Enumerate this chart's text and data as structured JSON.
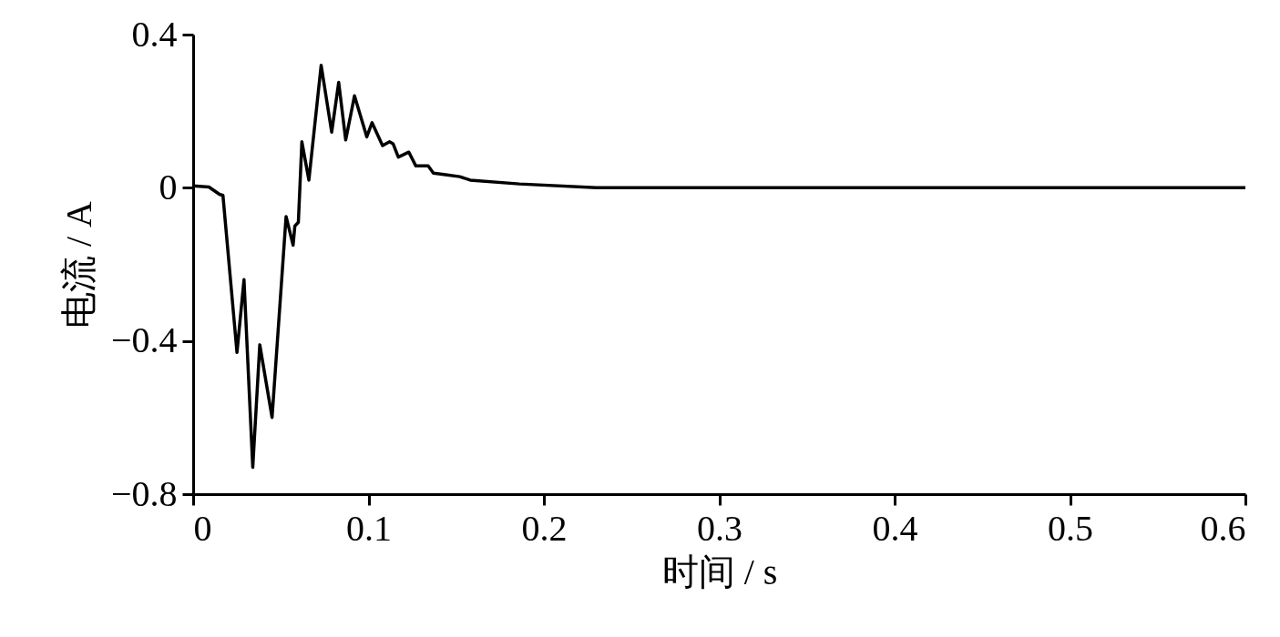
{
  "chart_data": {
    "type": "line",
    "xlabel": "时间 / s",
    "ylabel": "电流 / A",
    "xlim": [
      0,
      0.6
    ],
    "ylim": [
      -0.8,
      0.4
    ],
    "xticks": [
      0,
      0.1,
      0.2,
      0.3,
      0.4,
      0.5,
      0.6
    ],
    "yticks": [
      -0.8,
      -0.4,
      0,
      0.4
    ],
    "grid": false,
    "marker": "none",
    "line_style": "solid",
    "series": [
      {
        "color": "#000000",
        "x": [
          0,
          0.009,
          0.015,
          0.017,
          0.025,
          0.029,
          0.034,
          0.038,
          0.045,
          0.053,
          0.057,
          0.058,
          0.06,
          0.062,
          0.066,
          0.073,
          0.079,
          0.083,
          0.087,
          0.092,
          0.099,
          0.102,
          0.108,
          0.112,
          0.114,
          0.117,
          0.123,
          0.127,
          0.134,
          0.137,
          0.144,
          0.152,
          0.158,
          0.186,
          0.23,
          0.6
        ],
        "values": [
          0.005,
          0.002,
          -0.017,
          -0.02,
          -0.43,
          -0.24,
          -0.73,
          -0.41,
          -0.6,
          -0.075,
          -0.15,
          -0.1,
          -0.09,
          0.12,
          0.02,
          0.32,
          0.145,
          0.275,
          0.125,
          0.24,
          0.133,
          0.17,
          0.11,
          0.12,
          0.115,
          0.08,
          0.093,
          0.057,
          0.057,
          0.038,
          0.034,
          0.029,
          0.02,
          0.01,
          0,
          0
        ]
      }
    ]
  }
}
